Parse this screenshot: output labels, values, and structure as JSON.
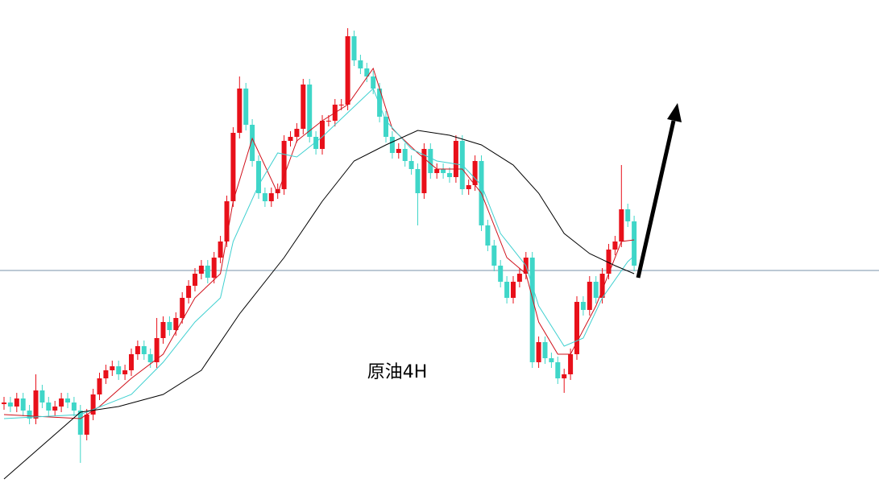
{
  "chart_data": {
    "type": "candlestick",
    "label": "原油4H",
    "ylim": [
      0,
      600
    ],
    "up_color": "#e8101a",
    "down_color": "#3fd6c8",
    "open": [
      98,
      100,
      95,
      105,
      90,
      80,
      115,
      100,
      90,
      95,
      105,
      100,
      90,
      60,
      85,
      110,
      130,
      140,
      145,
      135,
      140,
      160,
      170,
      160,
      150,
      180,
      200,
      190,
      205,
      230,
      245,
      260,
      270,
      255,
      280,
      300,
      350,
      435,
      490,
      445,
      400,
      360,
      350,
      360,
      365,
      425,
      430,
      440,
      495,
      430,
      415,
      450,
      450,
      470,
      470,
      555,
      525,
      515,
      505,
      490,
      455,
      430,
      410,
      415,
      400,
      390,
      360,
      415,
      385,
      390,
      385,
      380,
      425,
      365,
      370,
      400,
      320,
      295,
      270,
      250,
      230,
      250,
      260,
      280,
      150,
      175,
      155,
      150,
      130,
      135,
      160,
      225,
      215,
      250,
      230,
      260,
      290,
      300,
      340,
      325
    ],
    "high": [
      107,
      107,
      112,
      112,
      97,
      135,
      122,
      107,
      102,
      112,
      112,
      107,
      97,
      92,
      117,
      137,
      147,
      152,
      152,
      147,
      167,
      177,
      177,
      167,
      205,
      207,
      207,
      212,
      237,
      252,
      267,
      277,
      277,
      287,
      307,
      357,
      442,
      505,
      497,
      452,
      407,
      367,
      367,
      372,
      432,
      437,
      447,
      502,
      502,
      437,
      457,
      457,
      477,
      477,
      565,
      562,
      532,
      522,
      512,
      497,
      462,
      437,
      422,
      422,
      407,
      397,
      422,
      422,
      397,
      397,
      392,
      432,
      432,
      377,
      407,
      407,
      327,
      302,
      277,
      257,
      257,
      267,
      287,
      287,
      182,
      182,
      162,
      157,
      142,
      167,
      232,
      232,
      257,
      257,
      267,
      297,
      307,
      395,
      347,
      332
    ],
    "low": [
      91,
      88,
      88,
      83,
      73,
      73,
      93,
      83,
      83,
      88,
      93,
      83,
      25,
      53,
      78,
      103,
      123,
      133,
      128,
      128,
      133,
      153,
      153,
      143,
      143,
      173,
      183,
      183,
      198,
      223,
      238,
      253,
      248,
      248,
      273,
      293,
      343,
      428,
      438,
      393,
      353,
      343,
      343,
      353,
      358,
      418,
      423,
      433,
      423,
      408,
      408,
      443,
      443,
      463,
      463,
      518,
      508,
      498,
      483,
      448,
      423,
      403,
      403,
      393,
      383,
      320,
      353,
      378,
      378,
      378,
      373,
      373,
      358,
      358,
      363,
      313,
      288,
      263,
      243,
      223,
      223,
      243,
      253,
      143,
      143,
      148,
      143,
      123,
      112,
      128,
      153,
      208,
      208,
      223,
      223,
      253,
      283,
      293,
      318,
      263
    ],
    "close": [
      100,
      95,
      105,
      90,
      80,
      115,
      100,
      90,
      95,
      105,
      100,
      90,
      60,
      85,
      110,
      130,
      140,
      145,
      135,
      140,
      160,
      170,
      160,
      150,
      180,
      200,
      190,
      205,
      230,
      245,
      260,
      270,
      255,
      280,
      300,
      350,
      435,
      490,
      445,
      400,
      360,
      350,
      360,
      365,
      425,
      430,
      440,
      495,
      430,
      415,
      450,
      450,
      470,
      470,
      555,
      525,
      515,
      505,
      490,
      455,
      430,
      410,
      415,
      400,
      390,
      360,
      415,
      385,
      390,
      385,
      380,
      425,
      365,
      370,
      400,
      320,
      295,
      270,
      250,
      230,
      250,
      260,
      280,
      150,
      175,
      155,
      150,
      130,
      135,
      160,
      225,
      215,
      250,
      230,
      260,
      290,
      300,
      340,
      325,
      270
    ],
    "lines": [
      {
        "color": "#d0101a",
        "x": [
          0,
          12,
          15,
          20,
          25,
          30,
          34,
          36,
          39,
          43,
          46,
          50,
          54,
          58,
          61,
          65,
          68,
          72,
          75,
          79,
          82,
          84,
          87,
          89,
          93,
          97,
          99
        ],
        "values": [
          85,
          80,
          95,
          130,
          160,
          230,
          260,
          350,
          428,
          360,
          425,
          450,
          470,
          515,
          440,
          410,
          390,
          390,
          360,
          280,
          260,
          200,
          160,
          160,
          220,
          300,
          302
        ]
      },
      {
        "color": "#3fd0d0",
        "x": [
          0,
          12,
          20,
          25,
          30,
          34,
          36,
          40,
          43,
          46,
          50,
          54,
          58,
          60,
          64,
          68,
          72,
          75,
          78,
          82,
          84,
          88,
          91,
          94,
          98,
          99
        ],
        "values": [
          80,
          85,
          110,
          150,
          200,
          230,
          300,
          370,
          410,
          405,
          430,
          460,
          490,
          450,
          415,
          400,
          395,
          370,
          310,
          270,
          220,
          170,
          180,
          230,
          275,
          282
        ]
      },
      {
        "color": "#000000",
        "x": [
          0,
          12,
          18,
          25,
          31,
          37,
          44,
          50,
          55,
          60,
          65,
          70,
          75,
          80,
          84,
          88,
          92,
          96,
          99
        ],
        "values": [
          5,
          88,
          95,
          110,
          140,
          210,
          280,
          350,
          400,
          420,
          438,
          432,
          420,
          395,
          360,
          310,
          285,
          270,
          260
        ]
      }
    ]
  }
}
